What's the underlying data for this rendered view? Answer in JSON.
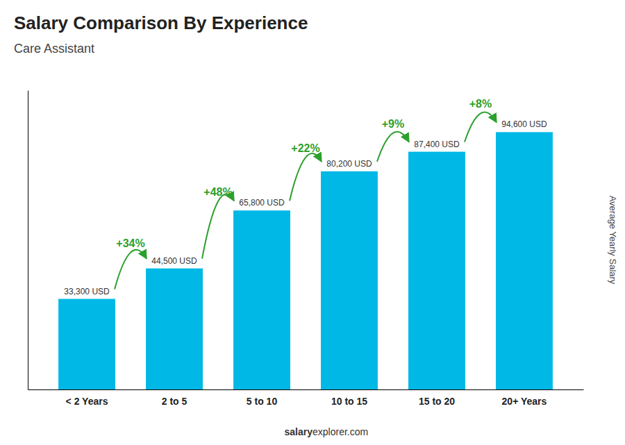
{
  "chart_data": {
    "type": "bar",
    "title": "Salary Comparison By Experience",
    "subtitle": "Care Assistant",
    "ylabel": "Average Yearly Salary",
    "categories": [
      "< 2 Years",
      "2 to 5",
      "5 to 10",
      "10 to 15",
      "15 to 20",
      "20+ Years"
    ],
    "values": [
      33300,
      44500,
      65800,
      80200,
      87400,
      94600
    ],
    "value_labels": [
      "33,300 USD",
      "44,500 USD",
      "65,800 USD",
      "80,200 USD",
      "87,400 USD",
      "94,600 USD"
    ],
    "data_labels": true,
    "color": "#00b8e6",
    "ylim": [
      0,
      110000
    ],
    "tick_labels": "x",
    "grid": false,
    "annotations": [
      "+34%",
      "+48%",
      "+22%",
      "+9%",
      "+8%"
    ],
    "footer": [
      "salary",
      "explorer.com"
    ]
  }
}
